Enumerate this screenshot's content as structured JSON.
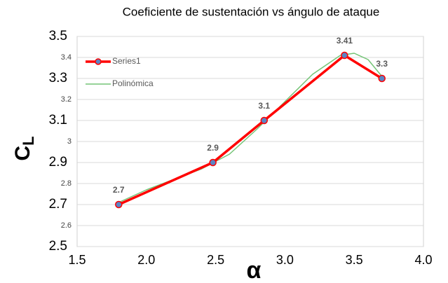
{
  "chart_data": {
    "type": "line",
    "title": "Coeficiente de sustentación vs ángulo de ataque",
    "xlabel": "α",
    "ylabel": "C",
    "ylabel_subscript": "L",
    "xlim": [
      1.5,
      4.0
    ],
    "ylim": [
      2.5,
      3.5
    ],
    "xticks": [
      1.5,
      {
        "value": 2,
        "label": "2.0"
      },
      2.5,
      {
        "value": 3,
        "label": "3.0"
      },
      3.5,
      {
        "value": 4,
        "label": "4.0"
      }
    ],
    "yticks": [
      2.5,
      2.6,
      2.7,
      2.8,
      2.9,
      3,
      3.1,
      3.2,
      3.3,
      3.4,
      3.5
    ],
    "grid": true,
    "legend": "top-left",
    "series": [
      {
        "name": "Series1",
        "color": "#ff0000",
        "marker_color": "#5b84c4",
        "x": [
          1.8,
          2.48,
          2.85,
          3.43,
          3.7
        ],
        "values": [
          2.7,
          2.9,
          3.1,
          3.41,
          3.3
        ],
        "data_labels": true
      },
      {
        "name": "Polinómica",
        "color": "#74c476",
        "x": [
          1.8,
          2.0,
          2.2,
          2.4,
          2.6,
          2.8,
          3.0,
          3.2,
          3.4,
          3.5,
          3.6,
          3.7
        ],
        "values": [
          2.71,
          2.77,
          2.82,
          2.87,
          2.94,
          3.06,
          3.19,
          3.32,
          3.41,
          3.42,
          3.39,
          3.31
        ]
      }
    ]
  }
}
